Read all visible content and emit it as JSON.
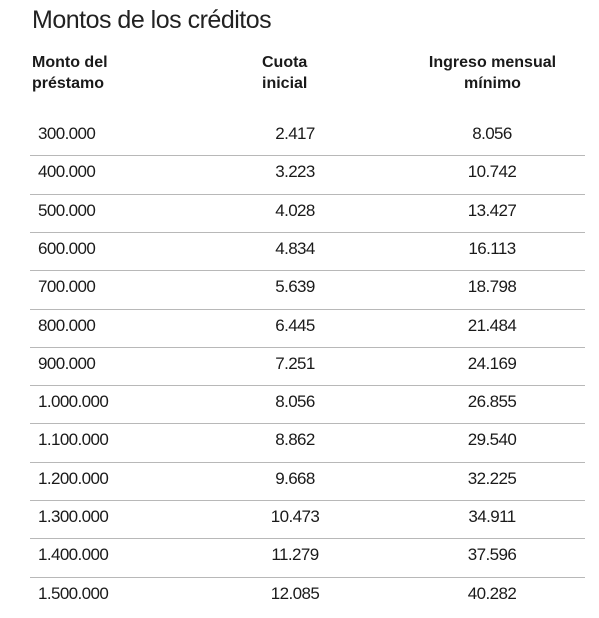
{
  "header": {
    "title": "Montos de los créditos"
  },
  "table": {
    "columns": [
      "Monto del préstamo",
      "Cuota inicial",
      "Ingreso mensual mínimo"
    ],
    "rows": [
      [
        "300.000",
        "2.417",
        "8.056"
      ],
      [
        "400.000",
        "3.223",
        "10.742"
      ],
      [
        "500.000",
        "4.028",
        "13.427"
      ],
      [
        "600.000",
        "4.834",
        "16.113"
      ],
      [
        "700.000",
        "5.639",
        "18.798"
      ],
      [
        "800.000",
        "6.445",
        "21.484"
      ],
      [
        "900.000",
        "7.251",
        "24.169"
      ],
      [
        "1.000.000",
        "8.056",
        "26.855"
      ],
      [
        "1.100.000",
        "8.862",
        "29.540"
      ],
      [
        "1.200.000",
        "9.668",
        "32.225"
      ],
      [
        "1.300.000",
        "10.473",
        "34.911"
      ],
      [
        "1.400.000",
        "11.279",
        "37.596"
      ],
      [
        "1.500.000",
        "12.085",
        "40.282"
      ]
    ]
  }
}
